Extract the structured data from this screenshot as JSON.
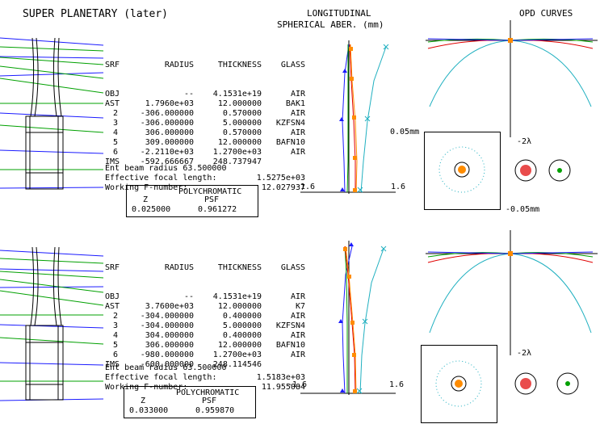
{
  "title": "SUPER PLANETARY (later)",
  "header_long": [
    "LONGITUDINAL",
    "SPHERICAL ABER. (mm)"
  ],
  "header_opd": "OPD CURVES",
  "colors": {
    "blue": "#1a1aff",
    "green": "#00a000",
    "red": "#e00000",
    "orange": "#ff8c00",
    "cyan": "#20b0c0"
  },
  "designs": [
    {
      "columns": [
        "SRF",
        "RADIUS",
        "THICKNESS",
        "GLASS"
      ],
      "rows": [
        [
          "OBJ",
          "--",
          "4.1531e+19",
          "AIR"
        ],
        [
          "AST",
          "1.7960e+03",
          "12.000000",
          "BAK1"
        ],
        [
          "2",
          "-306.000000",
          "0.570000",
          "AIR"
        ],
        [
          "3",
          "-306.000000",
          "5.000000",
          "KZFSN4"
        ],
        [
          "4",
          "306.000000",
          "0.570000",
          "AIR"
        ],
        [
          "5",
          "309.000000",
          "12.000000",
          "BAFN10"
        ],
        [
          "6",
          "-2.2110e+03",
          "1.2700e+03",
          "AIR"
        ],
        [
          "IMS",
          "-592.666667",
          "248.737947",
          ""
        ]
      ],
      "params": [
        [
          "Ent beam radius",
          "63.500000"
        ],
        [
          "Effective focal length:",
          "1.5275e+03"
        ],
        [
          "Working F-number:",
          "12.027937"
        ]
      ],
      "psf": {
        "header": "POLYCHROMATIC",
        "z_label": "Z",
        "psf_label": "PSF",
        "z": "0.025000",
        "value": "0.961272"
      },
      "lsa_axis": {
        "min": "-1.6",
        "max": "1.6"
      },
      "opd_label": "-2λ",
      "spot_scale": {
        "top": "0.05mm",
        "bottom": "-0.05mm"
      }
    },
    {
      "columns": [
        "SRF",
        "RADIUS",
        "THICKNESS",
        "GLASS"
      ],
      "rows": [
        [
          "OBJ",
          "--",
          "4.1531e+19",
          "AIR"
        ],
        [
          "AST",
          "3.7600e+03",
          "12.000000",
          "K7"
        ],
        [
          "2",
          "-304.000000",
          "0.400000",
          "AIR"
        ],
        [
          "3",
          "-304.000000",
          "5.000000",
          "KZFSN4"
        ],
        [
          "4",
          "304.000000",
          "0.400000",
          "AIR"
        ],
        [
          "5",
          "306.000000",
          "12.000000",
          "BAFN10"
        ],
        [
          "6",
          "-980.000000",
          "1.2700e+03",
          "AIR"
        ],
        [
          "IMS",
          "-600.000000",
          "248.114546",
          ""
        ]
      ],
      "params": [
        [
          "Ent beam radius",
          "63.500000"
        ],
        [
          "Effective focal length:",
          "1.5183e+03"
        ],
        [
          "Working F-number:",
          "11.955084"
        ]
      ],
      "psf": {
        "header": "POLYCHROMATIC",
        "z_label": "Z",
        "psf_label": "PSF",
        "z": "0.033000",
        "value": "0.959870"
      },
      "lsa_axis": {
        "min": "-1.6",
        "max": "1.6"
      },
      "opd_label": "-2λ"
    }
  ]
}
